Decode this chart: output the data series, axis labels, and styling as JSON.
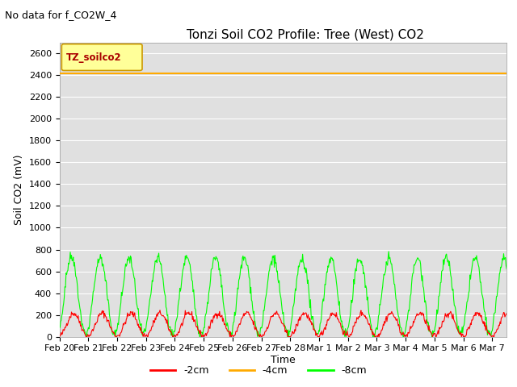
{
  "title": "Tonzi Soil CO2 Profile: Tree (West) CO2",
  "no_data_text": "No data for f_CO2W_4",
  "ylabel": "Soil CO2 (mV)",
  "xlabel": "Time",
  "legend_box_label": "TZ_soilco2",
  "ylim": [
    0,
    2700
  ],
  "yticks": [
    0,
    200,
    400,
    600,
    800,
    1000,
    1200,
    1400,
    1600,
    1800,
    2000,
    2200,
    2400,
    2600
  ],
  "orange_level": 2420,
  "series_colors": {
    "red": "#ff0000",
    "orange": "#ffaa00",
    "green": "#00ff00"
  },
  "series_labels": [
    "-2cm",
    "-4cm",
    "-8cm"
  ],
  "bg_color": "#e0e0e0",
  "fig_bg": "#ffffff",
  "legend_box_color": "#ffff99",
  "legend_box_edge": "#cc9900",
  "title_fontsize": 11,
  "label_fontsize": 9,
  "tick_fontsize": 8,
  "nodata_fontsize": 9,
  "legend_fontsize": 9
}
